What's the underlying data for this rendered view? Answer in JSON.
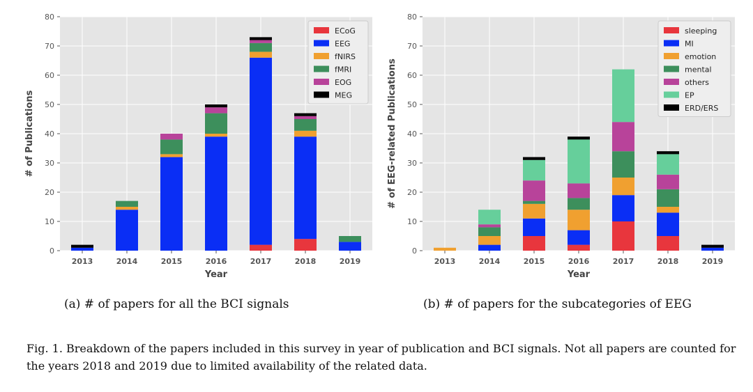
{
  "chart_data": [
    {
      "type": "bar",
      "stacked": true,
      "categories": [
        "2013",
        "2014",
        "2015",
        "2016",
        "2017",
        "2018",
        "2019"
      ],
      "xlabel": "Year",
      "ylabel": "# of Publications",
      "ylim": [
        0,
        80
      ],
      "yticks": [
        "0",
        "10",
        "20",
        "30",
        "40",
        "50",
        "60",
        "70",
        "80"
      ],
      "grid": true,
      "legend_position": "top-right",
      "series": [
        {
          "name": "ECoG",
          "color": "#e8363d",
          "values": [
            0,
            0,
            0,
            0,
            2,
            4,
            0
          ]
        },
        {
          "name": "EEG",
          "color": "#0a2ef5",
          "values": [
            1,
            14,
            32,
            39,
            64,
            35,
            3
          ]
        },
        {
          "name": "fNIRS",
          "color": "#f0a030",
          "values": [
            0,
            1,
            1,
            1,
            2,
            2,
            0
          ]
        },
        {
          "name": "fMRI",
          "color": "#3d8f5c",
          "values": [
            0,
            2,
            5,
            7,
            3,
            4,
            2
          ]
        },
        {
          "name": "EOG",
          "color": "#b8439a",
          "values": [
            0,
            0,
            2,
            2,
            1,
            1,
            0
          ]
        },
        {
          "name": "MEG",
          "color": "#000000",
          "values": [
            1,
            0,
            0,
            1,
            1,
            1,
            0
          ]
        }
      ]
    },
    {
      "type": "bar",
      "stacked": true,
      "categories": [
        "2013",
        "2014",
        "2015",
        "2016",
        "2017",
        "2018",
        "2019"
      ],
      "xlabel": "Year",
      "ylabel": "# of EEG-related Publications",
      "ylim": [
        0,
        80
      ],
      "yticks": [
        "0",
        "10",
        "20",
        "30",
        "40",
        "50",
        "60",
        "70",
        "80"
      ],
      "grid": true,
      "legend_position": "top-right",
      "series": [
        {
          "name": "sleeping",
          "color": "#e8363d",
          "values": [
            0,
            0,
            5,
            2,
            10,
            5,
            0
          ]
        },
        {
          "name": "MI",
          "color": "#0a2ef5",
          "values": [
            0,
            2,
            6,
            5,
            9,
            8,
            1
          ]
        },
        {
          "name": "emotion",
          "color": "#f0a030",
          "values": [
            1,
            3,
            5,
            7,
            6,
            2,
            0
          ]
        },
        {
          "name": "mental",
          "color": "#3d8f5c",
          "values": [
            0,
            3,
            1,
            4,
            9,
            6,
            0
          ]
        },
        {
          "name": "others",
          "color": "#b8439a",
          "values": [
            0,
            1,
            7,
            5,
            10,
            5,
            0
          ]
        },
        {
          "name": "EP",
          "color": "#66cf9b",
          "values": [
            0,
            5,
            7,
            15,
            18,
            7,
            0
          ]
        },
        {
          "name": "ERD/ERS",
          "color": "#000000",
          "values": [
            0,
            0,
            1,
            1,
            0,
            1,
            1
          ]
        }
      ]
    }
  ],
  "subcaptions": {
    "a": "(a) # of papers for all the BCI signals",
    "b": "(b) # of papers for the subcategories of EEG"
  },
  "figure_caption": {
    "label": "Fig. 1.",
    "text": "Breakdown of the papers included in this survey in year of publication and BCI signals. Not all papers are counted for the years 2018 and 2019 due to limited availability of the related data."
  }
}
